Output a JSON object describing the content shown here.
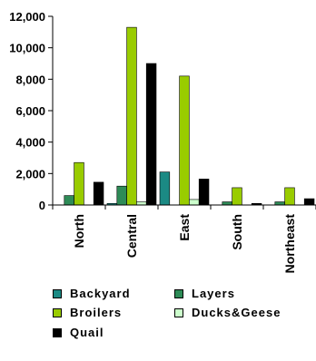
{
  "chart_data": {
    "type": "bar",
    "categories": [
      "North",
      "Central",
      "East",
      "South",
      "Northeast"
    ],
    "series": [
      {
        "name": "Backyard",
        "color": "#1b8a84",
        "values": [
          0,
          100,
          2100,
          0,
          0
        ]
      },
      {
        "name": "Layers",
        "color": "#2e8b57",
        "values": [
          600,
          1200,
          0,
          200,
          200
        ]
      },
      {
        "name": "Broilers",
        "color": "#99cc00",
        "values": [
          2700,
          11300,
          8200,
          1100,
          1100
        ]
      },
      {
        "name": "Ducks&Geese",
        "color": "#ccffcc",
        "values": [
          0,
          200,
          350,
          0,
          0
        ]
      },
      {
        "name": "Quail",
        "color": "#000000",
        "values": [
          1450,
          9000,
          1650,
          100,
          400
        ]
      }
    ],
    "yticks": [
      "0",
      "2,000",
      "4,000",
      "6,000",
      "8,000",
      "10,000",
      "12,000"
    ],
    "ylim": [
      0,
      12000
    ],
    "grid": false,
    "legend_position": "bottom"
  }
}
